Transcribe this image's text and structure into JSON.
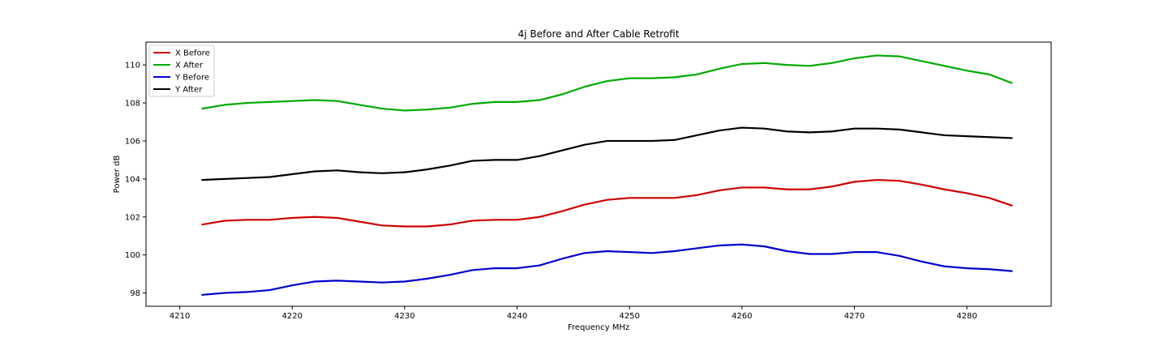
{
  "chart_data": {
    "type": "line",
    "title": "4j Before and After Cable Retrofit",
    "xlabel": "Frequency MHz",
    "ylabel": "Power dB",
    "xlim": [
      4207,
      4287.5
    ],
    "ylim": [
      97.3,
      111.2
    ],
    "xticks": [
      4210,
      4220,
      4230,
      4240,
      4250,
      4260,
      4270,
      4280
    ],
    "yticks": [
      98,
      100,
      102,
      104,
      106,
      108,
      110
    ],
    "grid": false,
    "legend_position": "top-left",
    "series": [
      {
        "name": "X Before",
        "color": "#cc0000",
        "x": [
          4212,
          4214,
          4216,
          4218,
          4220,
          4222,
          4224,
          4226,
          4228,
          4230,
          4232,
          4234,
          4236,
          4238,
          4240,
          4242,
          4244,
          4246,
          4248,
          4250,
          4252,
          4254,
          4256,
          4258,
          4260,
          4262,
          4264,
          4266,
          4268,
          4270,
          4272,
          4274,
          4276,
          4278,
          4280,
          4282,
          4284
        ],
        "y": [
          101.6,
          101.8,
          101.85,
          101.85,
          101.95,
          102.0,
          101.95,
          101.75,
          101.55,
          101.5,
          101.5,
          101.6,
          101.8,
          101.85,
          101.85,
          102.0,
          102.3,
          102.65,
          102.9,
          103.0,
          103.0,
          103.0,
          103.15,
          103.4,
          103.55,
          103.55,
          103.45,
          103.45,
          103.6,
          103.85,
          103.95,
          103.9,
          103.7,
          103.45,
          103.25,
          103.0,
          102.6
        ]
      },
      {
        "name": "X After",
        "color": "#00aa00",
        "x": [
          4212,
          4214,
          4216,
          4218,
          4220,
          4222,
          4224,
          4226,
          4228,
          4230,
          4232,
          4234,
          4236,
          4238,
          4240,
          4242,
          4244,
          4246,
          4248,
          4250,
          4252,
          4254,
          4256,
          4258,
          4260,
          4262,
          4264,
          4266,
          4268,
          4270,
          4272,
          4274,
          4276,
          4278,
          4280,
          4282,
          4284
        ],
        "y": [
          107.7,
          107.9,
          108.0,
          108.05,
          108.1,
          108.15,
          108.1,
          107.9,
          107.7,
          107.6,
          107.65,
          107.75,
          107.95,
          108.05,
          108.05,
          108.15,
          108.45,
          108.85,
          109.15,
          109.3,
          109.3,
          109.35,
          109.5,
          109.8,
          110.05,
          110.1,
          110.0,
          109.95,
          110.1,
          110.35,
          110.5,
          110.45,
          110.2,
          109.95,
          109.7,
          109.5,
          109.05
        ]
      },
      {
        "name": "Y Before",
        "color": "#0000cc",
        "x": [
          4212,
          4214,
          4216,
          4218,
          4220,
          4222,
          4224,
          4226,
          4228,
          4230,
          4232,
          4234,
          4236,
          4238,
          4240,
          4242,
          4244,
          4246,
          4248,
          4250,
          4252,
          4254,
          4256,
          4258,
          4260,
          4262,
          4264,
          4266,
          4268,
          4270,
          4272,
          4274,
          4276,
          4278,
          4280,
          4282,
          4284
        ],
        "y": [
          97.9,
          98.0,
          98.05,
          98.15,
          98.4,
          98.6,
          98.65,
          98.6,
          98.55,
          98.6,
          98.75,
          98.95,
          99.2,
          99.3,
          99.3,
          99.45,
          99.8,
          100.1,
          100.2,
          100.15,
          100.1,
          100.2,
          100.35,
          100.5,
          100.55,
          100.45,
          100.2,
          100.05,
          100.05,
          100.15,
          100.15,
          99.95,
          99.65,
          99.4,
          99.3,
          99.25,
          99.15
        ]
      },
      {
        "name": "Y After",
        "color": "#000000",
        "x": [
          4212,
          4214,
          4216,
          4218,
          4220,
          4222,
          4224,
          4226,
          4228,
          4230,
          4232,
          4234,
          4236,
          4238,
          4240,
          4242,
          4244,
          4246,
          4248,
          4250,
          4252,
          4254,
          4256,
          4258,
          4260,
          4262,
          4264,
          4266,
          4268,
          4270,
          4272,
          4274,
          4276,
          4278,
          4280,
          4282,
          4284
        ],
        "y": [
          103.95,
          104.0,
          104.05,
          104.1,
          104.25,
          104.4,
          104.45,
          104.35,
          104.3,
          104.35,
          104.5,
          104.7,
          104.95,
          105.0,
          105.0,
          105.2,
          105.5,
          105.8,
          106.0,
          106.0,
          106.0,
          106.05,
          106.3,
          106.55,
          106.7,
          106.65,
          106.5,
          106.45,
          106.5,
          106.65,
          106.65,
          106.6,
          106.45,
          106.3,
          106.25,
          106.2,
          106.15
        ]
      }
    ]
  }
}
